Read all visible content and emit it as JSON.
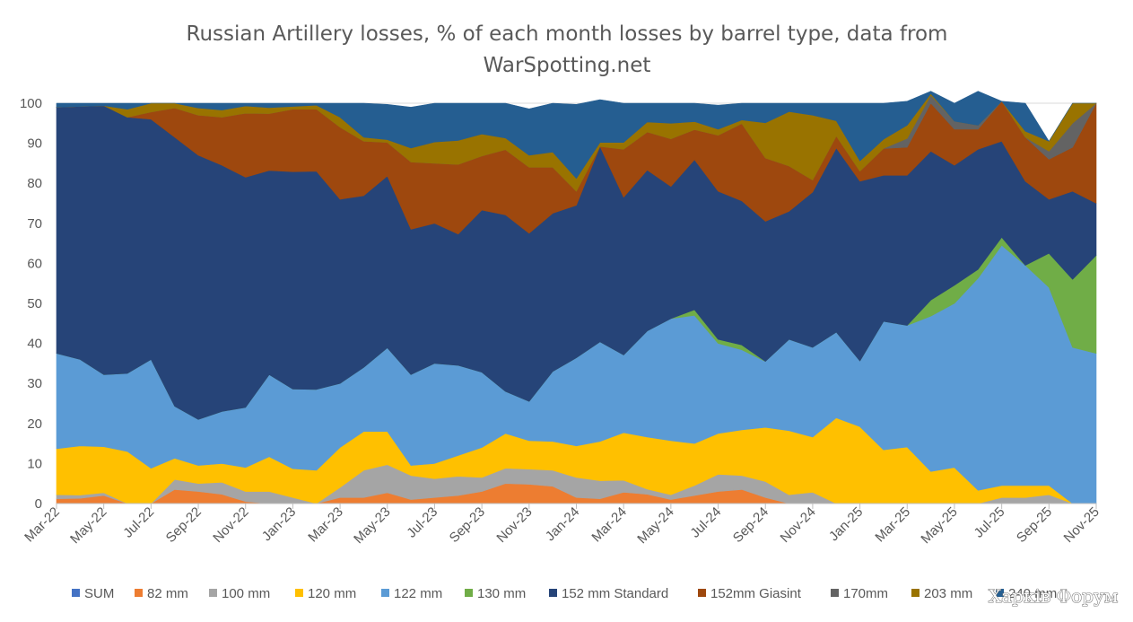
{
  "chart_data": {
    "type": "area",
    "stacked": true,
    "title": "Russian Artillery losses, % of each month losses by barrel type, data from WarSpotting.net",
    "title_lines": [
      "Russian Artillery losses, % of each month losses by barrel type, data from",
      "WarSpotting.net"
    ],
    "xlabel": "",
    "ylabel": "",
    "ylim": [
      0,
      100
    ],
    "yticks": [
      0,
      10,
      20,
      30,
      40,
      50,
      60,
      70,
      80,
      90,
      100
    ],
    "x": [
      "Mar-22",
      "Apr-22",
      "May-22",
      "Jun-22",
      "Jul-22",
      "Aug-22",
      "Sep-22",
      "Oct-22",
      "Nov-22",
      "Dec-22",
      "Jan-23",
      "Feb-23",
      "Mar-23",
      "Apr-23",
      "May-23",
      "Jun-23",
      "Jul-23",
      "Aug-23",
      "Sep-23",
      "Oct-23",
      "Nov-23",
      "Dec-23",
      "Jan-24",
      "Feb-24",
      "Mar-24",
      "Apr-24",
      "May-24",
      "Jun-24",
      "Jul-24",
      "Aug-24",
      "Sep-24",
      "Oct-24",
      "Nov-24",
      "Dec-24",
      "Jan-25",
      "Feb-25",
      "Mar-25",
      "Apr-25",
      "May-25",
      "Jun-25",
      "Jul-25",
      "Aug-25",
      "Sep-25",
      "Oct-25",
      "Nov-25"
    ],
    "xtick_labels": [
      "Mar-22",
      "May-22",
      "Jul-22",
      "Sep-22",
      "Nov-22",
      "Jan-23",
      "Mar-23",
      "May-23",
      "Jul-23",
      "Sep-23",
      "Nov-23",
      "Jan-24",
      "Mar-24",
      "May-24",
      "Jul-24",
      "Sep-24",
      "Nov-24",
      "Jan-25",
      "Mar-25",
      "May-25",
      "Jul-25",
      "Sep-25",
      "Nov-25"
    ],
    "legend_position": "bottom",
    "legend": [
      "SUM",
      "82 mm",
      "100 mm",
      "120 mm",
      "122 mm",
      "130 mm",
      "152 mm Standard",
      "152mm Giasint",
      "170mm",
      "203 mm",
      "240 mm"
    ],
    "series": [
      {
        "name": "SUM",
        "color": "#4472c4",
        "values": [
          0,
          0,
          0,
          0,
          0,
          0,
          0,
          0,
          0,
          0,
          0,
          0,
          0,
          0,
          0,
          0,
          0,
          0,
          0,
          0,
          0,
          0,
          0,
          0,
          0,
          0,
          0,
          0,
          0,
          0,
          0,
          0,
          0,
          0,
          0,
          0,
          0,
          0,
          0,
          0,
          0,
          0,
          0,
          0,
          0
        ]
      },
      {
        "name": "82 mm",
        "color": "#ed7d31",
        "values": [
          1.2,
          1.3,
          2.0,
          0,
          0,
          3.5,
          3.0,
          2.3,
          0.5,
          0,
          0,
          0,
          1.5,
          1.5,
          2.7,
          1.0,
          1.5,
          2.0,
          3.0,
          5.0,
          4.8,
          4.3,
          1.5,
          1.2,
          2.8,
          2.3,
          1.0,
          2.0,
          3.0,
          3.5,
          1.5,
          0,
          0,
          0,
          0,
          0,
          0,
          0,
          0,
          0,
          0,
          0,
          0,
          0,
          0
        ]
      },
      {
        "name": "100 mm",
        "color": "#a5a5a5",
        "values": [
          1.0,
          0.8,
          0.7,
          0,
          0,
          2.5,
          2.0,
          3.0,
          2.5,
          3.0,
          1.5,
          0,
          2.5,
          6.8,
          7.0,
          6.0,
          4.7,
          4.8,
          3.5,
          3.8,
          3.8,
          4.0,
          5.0,
          4.5,
          3.0,
          1.3,
          1.2,
          2.5,
          4.3,
          3.5,
          4.0,
          2.2,
          2.8,
          0,
          0,
          0,
          0,
          0,
          0,
          0,
          1.5,
          1.5,
          2.2,
          0,
          0
        ]
      },
      {
        "name": "120 mm",
        "color": "#ffc000",
        "values": [
          11.5,
          12.3,
          11.5,
          13.0,
          8.8,
          5.3,
          4.5,
          4.7,
          6.0,
          8.7,
          7.2,
          8.3,
          10.0,
          9.7,
          8.3,
          2.5,
          3.8,
          5.2,
          7.5,
          8.7,
          7.1,
          7.2,
          7.9,
          9.8,
          11.9,
          13.0,
          13.5,
          10.5,
          10.2,
          11.4,
          13.5,
          16.0,
          13.8,
          21.4,
          19.2,
          13.4,
          14.1,
          8.0,
          9.0,
          3.3,
          3.0,
          3.0,
          2.3,
          0,
          0
        ]
      },
      {
        "name": "122 mm",
        "color": "#5b9bd5",
        "values": [
          23.8,
          21.6,
          18.0,
          19.5,
          27.2,
          13.0,
          11.5,
          13.0,
          15.0,
          20.5,
          19.9,
          20.2,
          16.0,
          16.0,
          20.9,
          22.7,
          25.0,
          22.5,
          18.8,
          10.5,
          9.8,
          17.5,
          22.0,
          24.9,
          19.4,
          26.5,
          30.5,
          32.0,
          22.5,
          20.0,
          16.5,
          22.8,
          22.4,
          21.4,
          16.4,
          32.1,
          30.4,
          38.8,
          41.0,
          53.0,
          60.0,
          55.0,
          49.5,
          39.0,
          37.5
        ]
      },
      {
        "name": "130 mm",
        "color": "#70ad47",
        "values": [
          0,
          0,
          0,
          0,
          0,
          0,
          0,
          0,
          0,
          0,
          0,
          0,
          0,
          0,
          0,
          0,
          0,
          0,
          0,
          0,
          0,
          0,
          0,
          0,
          0,
          0,
          0,
          1.4,
          1.0,
          1.2,
          0,
          0,
          0,
          0,
          0,
          0,
          0,
          4.0,
          4.5,
          2.2,
          2.0,
          0,
          8.5,
          17.0,
          24.5
        ]
      },
      {
        "name": "152 mm Standard",
        "color": "#264478",
        "values": [
          61.5,
          63.2,
          67.2,
          64.0,
          60.0,
          67.2,
          66.0,
          61.5,
          57.5,
          51.0,
          54.3,
          54.5,
          46.0,
          42.9,
          42.9,
          36.3,
          35.0,
          32.8,
          40.5,
          44.1,
          42.0,
          39.5,
          38.1,
          48.8,
          39.4,
          40.2,
          33.0,
          37.5,
          37.0,
          36.0,
          35.0,
          32.0,
          38.8,
          46.0,
          44.9,
          36.5,
          37.5,
          37.2,
          30.0,
          30.0,
          24.0,
          21.0,
          13.5,
          22.0,
          13.0
        ]
      },
      {
        "name": "152mm Giasint",
        "color": "#9e480e",
        "values": [
          0,
          0,
          0,
          0,
          1.8,
          7.3,
          10.0,
          12.0,
          16.0,
          14.2,
          15.6,
          15.5,
          18.0,
          13.6,
          8.4,
          16.8,
          15.0,
          17.4,
          13.5,
          16.3,
          16.5,
          11.5,
          3.5,
          0,
          12.0,
          9.5,
          11.9,
          7.5,
          14.0,
          19.3,
          15.8,
          11.3,
          3.0,
          3.0,
          2.5,
          6.7,
          7.0,
          12.0,
          9.0,
          5.0,
          10.0,
          11.0,
          10.0,
          11.0,
          25.0
        ]
      },
      {
        "name": "170mm",
        "color": "#636363",
        "values": [
          0,
          0,
          0,
          0,
          0,
          0,
          0,
          0,
          0,
          0,
          0,
          0,
          0,
          0,
          0,
          0,
          0,
          0,
          0,
          0,
          0,
          0,
          0,
          0,
          0,
          0,
          0,
          0,
          0,
          0,
          0,
          0,
          0,
          0,
          0,
          0,
          2.2,
          2.0,
          2.0,
          1.0,
          0,
          0,
          2.0,
          6.0,
          0
        ]
      },
      {
        "name": "203 mm",
        "color": "#997300",
        "values": [
          0,
          0,
          0,
          2.0,
          2.2,
          1.2,
          1.8,
          1.8,
          1.8,
          1.5,
          0.7,
          1.0,
          2.5,
          1.0,
          0.7,
          3.5,
          5.3,
          6.0,
          5.5,
          2.9,
          3.0,
          3.8,
          3.2,
          1.0,
          1.7,
          2.5,
          3.9,
          2.0,
          1.5,
          0.9,
          8.8,
          13.6,
          16.2,
          3.8,
          2.6,
          2.3,
          3.3,
          0.4,
          0,
          0,
          0,
          1.5,
          2.5,
          5.0,
          0
        ]
      },
      {
        "name": "240 mm",
        "color": "#255e91",
        "values": [
          1.0,
          0.8,
          0.6,
          1.5,
          0,
          0,
          1.2,
          1.7,
          0.7,
          1.1,
          0.8,
          0.5,
          3.5,
          8.5,
          8.8,
          10.2,
          9.7,
          9.3,
          7.7,
          8.7,
          11.6,
          12.2,
          18.5,
          10.7,
          9.8,
          4.7,
          5.0,
          4.6,
          6.0,
          4.2,
          4.9,
          2.1,
          3.0,
          4.4,
          14.4,
          9.0,
          6.0,
          0.6,
          4.5,
          8.5,
          0,
          7.0,
          0,
          0,
          0
        ]
      }
    ]
  },
  "watermark": "Харків Форум"
}
